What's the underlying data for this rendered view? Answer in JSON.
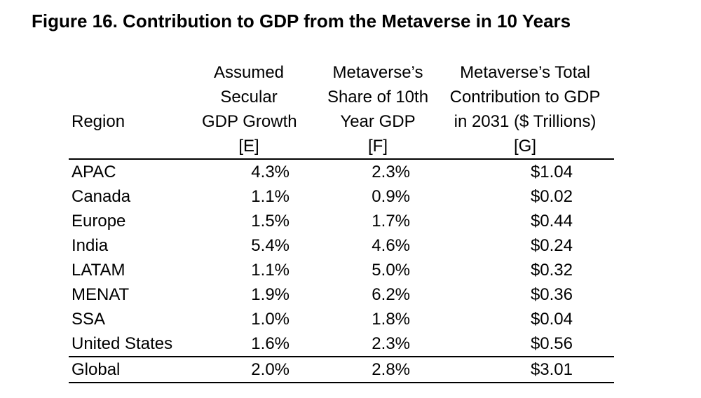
{
  "figure_title": "Figure 16. Contribution to GDP from the Metaverse in 10 Years",
  "table": {
    "header": {
      "region": [
        "",
        "",
        "Region",
        ""
      ],
      "col_e": [
        "Assumed",
        "Secular",
        "GDP Growth",
        "[E]"
      ],
      "col_f": [
        "Metaverse’s",
        "Share of 10th",
        "Year GDP",
        "[F]"
      ],
      "col_g": [
        "Metaverse’s Total",
        "Contribution to GDP",
        "in 2031 ($ Trillions)",
        "[G]"
      ]
    },
    "rows": [
      {
        "region": "APAC",
        "gdp_growth": "4.3%",
        "metaverse_share": "2.3%",
        "contribution": "$1.04"
      },
      {
        "region": "Canada",
        "gdp_growth": "1.1%",
        "metaverse_share": "0.9%",
        "contribution": "$0.02"
      },
      {
        "region": "Europe",
        "gdp_growth": "1.5%",
        "metaverse_share": "1.7%",
        "contribution": "$0.44"
      },
      {
        "region": "India",
        "gdp_growth": "5.4%",
        "metaverse_share": "4.6%",
        "contribution": "$0.24"
      },
      {
        "region": "LATAM",
        "gdp_growth": "1.1%",
        "metaverse_share": "5.0%",
        "contribution": "$0.32"
      },
      {
        "region": "MENAT",
        "gdp_growth": "1.9%",
        "metaverse_share": "6.2%",
        "contribution": "$0.36"
      },
      {
        "region": "SSA",
        "gdp_growth": "1.0%",
        "metaverse_share": "1.8%",
        "contribution": "$0.04"
      },
      {
        "region": "United States",
        "gdp_growth": "1.6%",
        "metaverse_share": "2.3%",
        "contribution": "$0.56"
      },
      {
        "region": "Global",
        "gdp_growth": "2.0%",
        "metaverse_share": "2.8%",
        "contribution": "$3.01"
      }
    ]
  },
  "colors": {
    "text": "#000000",
    "background": "#ffffff",
    "rule": "#000000"
  }
}
